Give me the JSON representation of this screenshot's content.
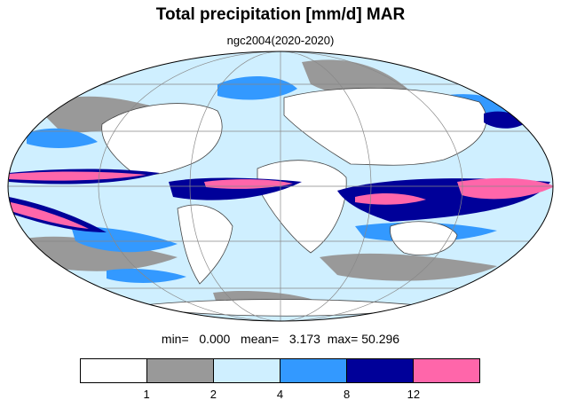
{
  "title": "Total precipitation [mm/d] MAR",
  "subtitle": "ngc2004(2020-2020)",
  "stats": {
    "min_label": "min=",
    "min_value": "0.000",
    "mean_label": "mean=",
    "mean_value": "3.173",
    "max_label": "max=",
    "max_value": "50.296"
  },
  "colorbar": {
    "colors": [
      "#ffffff",
      "#999999",
      "#cfefff",
      "#3399ff",
      "#000099",
      "#ff66aa"
    ],
    "ticks": [
      "1",
      "2",
      "4",
      "8",
      "12"
    ]
  },
  "map": {
    "projection": "mollweide",
    "land_outline_color": "#444444",
    "graticule_color": "#999999",
    "background": "#cfefff"
  }
}
